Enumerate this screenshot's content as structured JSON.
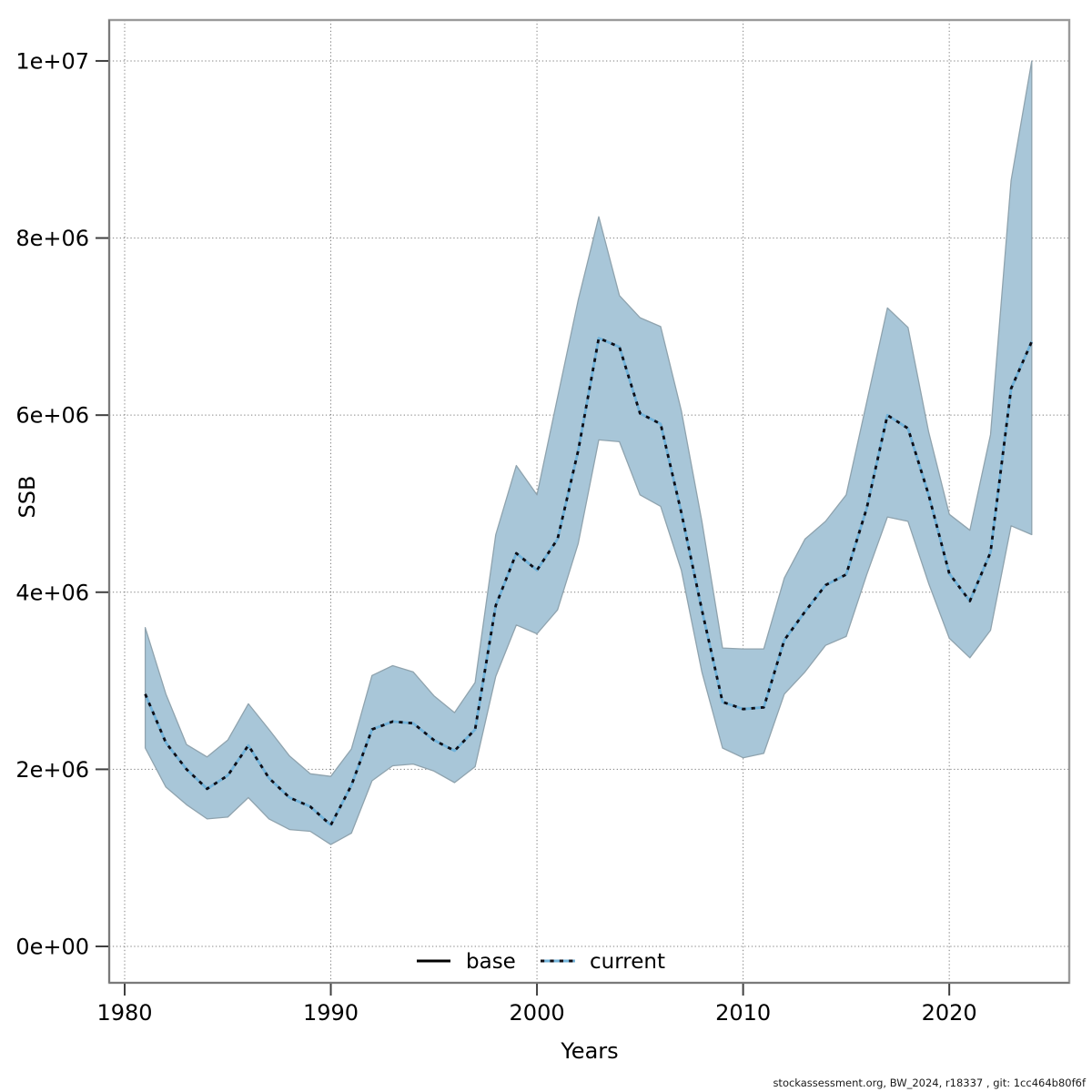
{
  "footer": {
    "text": "stockassessment.org, BW_2024, r18337 , git: 1cc464b80f6f"
  },
  "legend": {
    "base_label": "base",
    "current_label": "current"
  },
  "chart_data": {
    "type": "line",
    "title": "",
    "xlabel": "Years",
    "ylabel": "SSB",
    "grid": true,
    "legend_position": "bottom-center-inside",
    "xlim": [
      1979.25,
      2025.82
    ],
    "ylim": [
      -411000,
      10462000
    ],
    "x_ticks": [
      {
        "v": 1980,
        "label": "1980"
      },
      {
        "v": 1990,
        "label": "1990"
      },
      {
        "v": 2000,
        "label": "2000"
      },
      {
        "v": 2010,
        "label": "2010"
      },
      {
        "v": 2020,
        "label": "2020"
      }
    ],
    "y_ticks": [
      {
        "v": 0,
        "label": "0e+00"
      },
      {
        "v": 2000000,
        "label": "2e+06"
      },
      {
        "v": 4000000,
        "label": "4e+06"
      },
      {
        "v": 6000000,
        "label": "6e+06"
      },
      {
        "v": 8000000,
        "label": "8e+06"
      },
      {
        "v": 10000000,
        "label": "1e+07"
      }
    ],
    "x": [
      1981,
      1982,
      1983,
      1984,
      1985,
      1986,
      1987,
      1988,
      1989,
      1990,
      1991,
      1992,
      1993,
      1994,
      1995,
      1996,
      1997,
      1998,
      1999,
      2000,
      2001,
      2002,
      2003,
      2004,
      2005,
      2006,
      2007,
      2008,
      2009,
      2010,
      2011,
      2012,
      2013,
      2014,
      2015,
      2016,
      2017,
      2018,
      2019,
      2020,
      2021,
      2022,
      2023,
      2024
    ],
    "series": [
      {
        "name": "current",
        "style": "dotted",
        "values": [
          2850000,
          2300000,
          2000000,
          1780000,
          1930000,
          2270000,
          1900000,
          1680000,
          1580000,
          1370000,
          1820000,
          2450000,
          2540000,
          2520000,
          2330000,
          2210000,
          2450000,
          3850000,
          4440000,
          4250000,
          4600000,
          5600000,
          6870000,
          6770000,
          6020000,
          5900000,
          4900000,
          3800000,
          2760000,
          2680000,
          2700000,
          3460000,
          3780000,
          4080000,
          4200000,
          4950000,
          6000000,
          5850000,
          5100000,
          4210000,
          3900000,
          4450000,
          6300000,
          6830000
        ]
      }
    ],
    "band": {
      "name": "confidence-interval",
      "lower": [
        2240000,
        1800000,
        1600000,
        1440000,
        1460000,
        1680000,
        1440000,
        1320000,
        1300000,
        1150000,
        1280000,
        1870000,
        2040000,
        2060000,
        1980000,
        1850000,
        2030000,
        3050000,
        3630000,
        3530000,
        3800000,
        4550000,
        5720000,
        5700000,
        5100000,
        4970000,
        4250000,
        3100000,
        2240000,
        2130000,
        2180000,
        2850000,
        3100000,
        3400000,
        3500000,
        4200000,
        4850000,
        4800000,
        4100000,
        3480000,
        3260000,
        3570000,
        4750000,
        4650000
      ],
      "upper": [
        3600000,
        2850000,
        2280000,
        2140000,
        2330000,
        2740000,
        2450000,
        2150000,
        1950000,
        1920000,
        2230000,
        3060000,
        3170000,
        3100000,
        2830000,
        2640000,
        2980000,
        4650000,
        5430000,
        5100000,
        6200000,
        7300000,
        8240000,
        7350000,
        7100000,
        7000000,
        6050000,
        4800000,
        3370000,
        3360000,
        3360000,
        4160000,
        4600000,
        4800000,
        5100000,
        6150000,
        7210000,
        6990000,
        5810000,
        4880000,
        4700000,
        5780000,
        8650000,
        10000000
      ]
    },
    "colors": {
      "band_fill": "#a8c6d8",
      "band_edge": "#8fa3ae",
      "line_blue": "#72b3da",
      "line_dot": "#0d0d15",
      "base_line": "#000000",
      "grid": "#7f7f7f",
      "box": "#9a9a9a",
      "axis": "#7a7a7a",
      "tick": "#404040"
    }
  }
}
